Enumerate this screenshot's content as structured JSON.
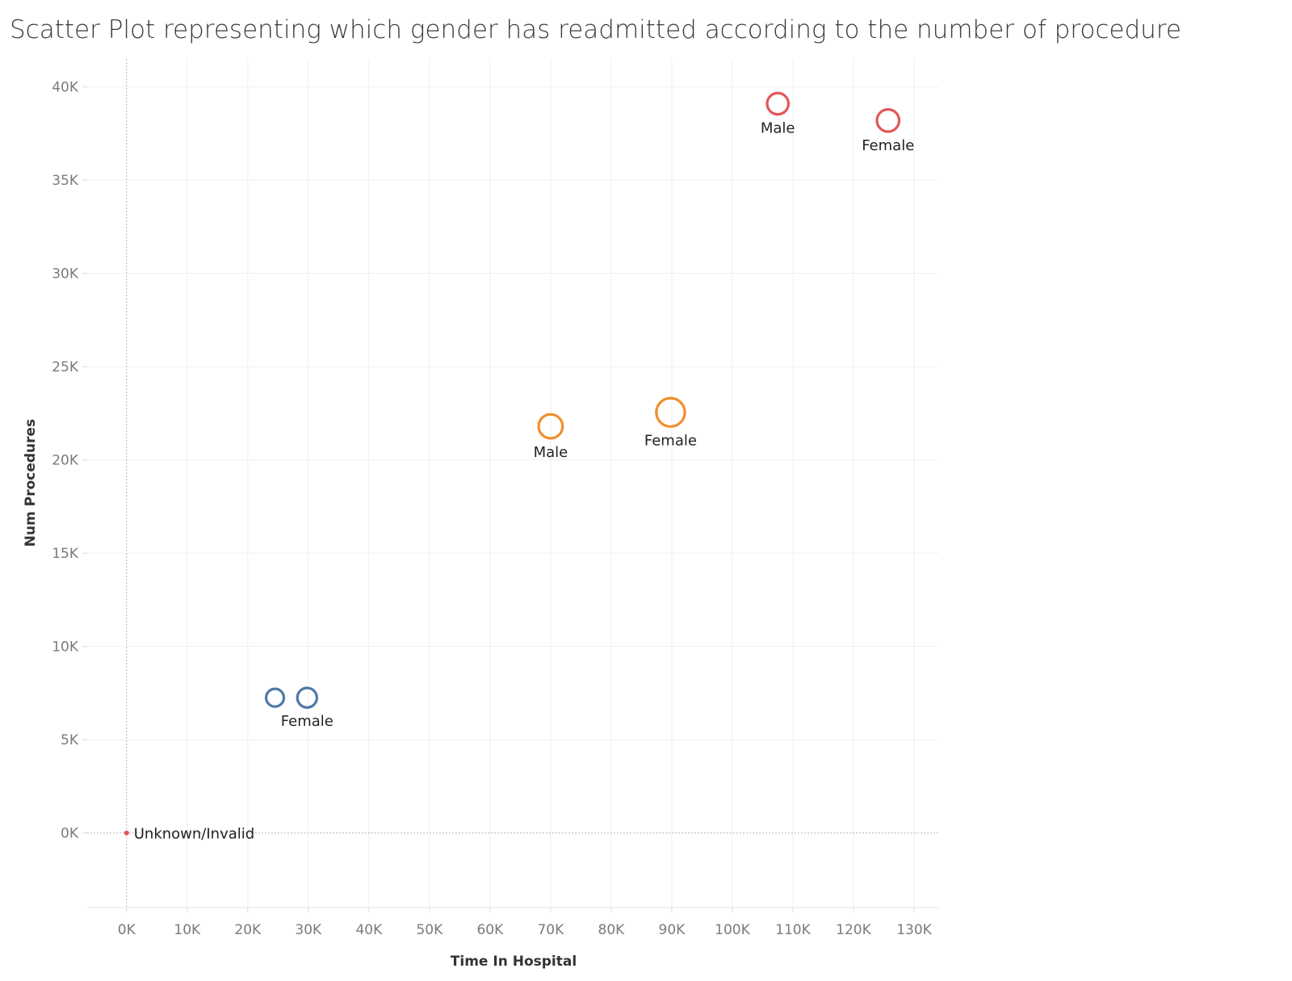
{
  "colors": {
    "blue": "#4e79a7",
    "orange": "#f28e2b",
    "red": "#e15759",
    "grid": "#efefef",
    "zero_line": "#b9b9b9"
  },
  "chart_data": {
    "type": "scatter",
    "title": "Scatter Plot representing which gender has readmitted according to the number of procedure",
    "xlabel": "Time In Hospital",
    "ylabel": "Num Procedures",
    "xlim": [
      -6500,
      134000
    ],
    "ylim": [
      -4000,
      41500
    ],
    "x_ticks": [
      0,
      10000,
      20000,
      30000,
      40000,
      50000,
      60000,
      70000,
      80000,
      90000,
      100000,
      110000,
      120000,
      130000
    ],
    "x_tick_labels": [
      "0K",
      "10K",
      "20K",
      "30K",
      "40K",
      "50K",
      "60K",
      "70K",
      "80K",
      "90K",
      "100K",
      "110K",
      "120K",
      "130K"
    ],
    "y_ticks": [
      0,
      5000,
      10000,
      15000,
      20000,
      25000,
      30000,
      35000,
      40000
    ],
    "y_tick_labels": [
      "0K",
      "5K",
      "10K",
      "15K",
      "20K",
      "25K",
      "30K",
      "35K",
      "40K"
    ],
    "grid": true,
    "legend": "none",
    "points": [
      {
        "x": 24500,
        "y": 7250,
        "label": "",
        "color": "#4e79a7",
        "size": 1.0
      },
      {
        "x": 29800,
        "y": 7250,
        "label": "Female",
        "color": "#4e79a7",
        "size": 1.1
      },
      {
        "x": 70000,
        "y": 21800,
        "label": "Male",
        "color": "#f28e2b",
        "size": 1.35
      },
      {
        "x": 89800,
        "y": 22550,
        "label": "Female",
        "color": "#f28e2b",
        "size": 1.6
      },
      {
        "x": 107500,
        "y": 39100,
        "label": "Male",
        "color": "#e15759",
        "size": 1.2
      },
      {
        "x": 125700,
        "y": 38200,
        "label": "Female",
        "color": "#e15759",
        "size": 1.25
      },
      {
        "x": 0,
        "y": 0,
        "label": "Unknown/Invalid",
        "color": "#e15759",
        "size": 0.15
      }
    ]
  }
}
